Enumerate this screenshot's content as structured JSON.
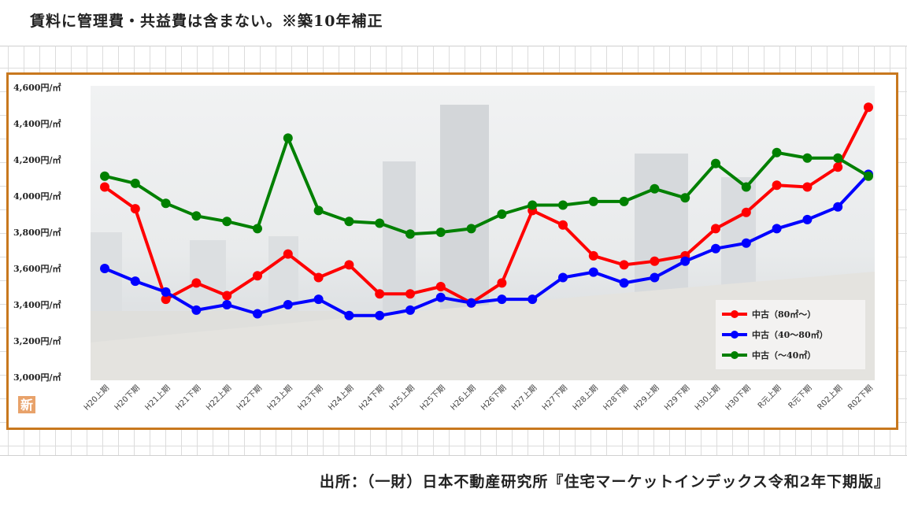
{
  "header_note": "賃料に管理費・共益費は含まない。※築10年補正",
  "source_note": "出所：（一財）日本不動産研究所『住宅マーケットインデックス令和2年下期版』",
  "badge_text": "新",
  "colors": {
    "frame": "#c8781e",
    "series": [
      "#ff0000",
      "#0000ff",
      "#008000"
    ]
  },
  "chart_data": {
    "type": "line",
    "title": "",
    "xlabel": "",
    "ylabel": "",
    "ylim": [
      3000,
      4600
    ],
    "yticks": [
      3000,
      3200,
      3400,
      3600,
      3800,
      4000,
      4200,
      4400,
      4600
    ],
    "ytick_labels": [
      "3,000円/㎡",
      "3,200円/㎡",
      "3,400円/㎡",
      "3,600円/㎡",
      "3,800円/㎡",
      "4,000円/㎡",
      "4,200円/㎡",
      "4,400円/㎡",
      "4,600円/㎡"
    ],
    "grid": false,
    "legend_position": "bottom-right",
    "categories": [
      "H20上期",
      "H20下期",
      "H21上期",
      "H21下期",
      "H22上期",
      "H22下期",
      "H23上期",
      "H23下期",
      "H24上期",
      "H24下期",
      "H25上期",
      "H25下期",
      "H26上期",
      "H26下期",
      "H27上期",
      "H27下期",
      "H28上期",
      "H28下期",
      "H29上期",
      "H29下期",
      "H30上期",
      "H30下期",
      "R元上期",
      "R元下期",
      "R02上期",
      "R02下期"
    ],
    "series": [
      {
        "name": "中古（80㎡～）",
        "values": [
          4050,
          3930,
          3430,
          3520,
          3450,
          3560,
          3680,
          3550,
          3620,
          3460,
          3460,
          3500,
          3410,
          3520,
          3920,
          3840,
          3670,
          3620,
          3640,
          3670,
          3820,
          3910,
          4060,
          4050,
          4160,
          4490
        ]
      },
      {
        "name": "中古（40～80㎡）",
        "values": [
          3600,
          3530,
          3470,
          3370,
          3400,
          3350,
          3400,
          3430,
          3340,
          3340,
          3370,
          3440,
          3410,
          3430,
          3430,
          3550,
          3580,
          3520,
          3550,
          3640,
          3710,
          3740,
          3820,
          3870,
          3940,
          4120
        ]
      },
      {
        "name": "中古（～40㎡）",
        "values": [
          4110,
          4070,
          3960,
          3890,
          3860,
          3820,
          4320,
          3920,
          3860,
          3850,
          3790,
          3800,
          3820,
          3900,
          3950,
          3950,
          3970,
          3970,
          4040,
          3990,
          4180,
          4050,
          4240,
          4210,
          4210,
          4110
        ]
      }
    ]
  }
}
